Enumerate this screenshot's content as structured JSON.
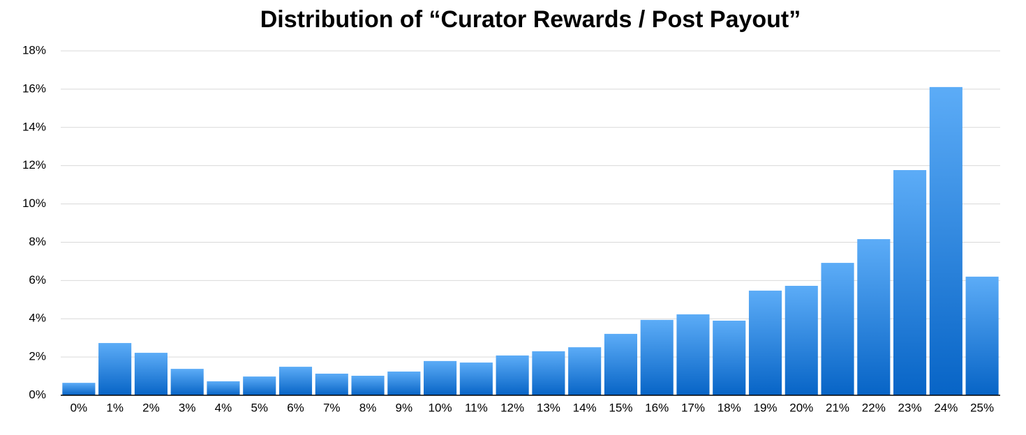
{
  "chart_data": {
    "type": "bar",
    "title": "Distribution of “Curator Rewards / Post Payout”",
    "categories": [
      "0%",
      "1%",
      "2%",
      "3%",
      "4%",
      "5%",
      "6%",
      "7%",
      "8%",
      "9%",
      "10%",
      "11%",
      "12%",
      "13%",
      "14%",
      "15%",
      "16%",
      "17%",
      "18%",
      "19%",
      "20%",
      "21%",
      "22%",
      "23%",
      "24%",
      "25%"
    ],
    "values": [
      0.65,
      2.73,
      2.22,
      1.38,
      0.73,
      0.98,
      1.49,
      1.13,
      1.02,
      1.24,
      1.79,
      1.71,
      2.08,
      2.3,
      2.51,
      3.21,
      3.94,
      4.23,
      3.9,
      5.47,
      5.72,
      6.92,
      8.16,
      11.77,
      16.11,
      6.2
    ],
    "gradient": [
      "#5cacf7",
      "#0764c6"
    ],
    "ylim": [
      0,
      18
    ],
    "yticks": [
      {
        "value": 0,
        "label": "0%"
      },
      {
        "value": 2,
        "label": "2%"
      },
      {
        "value": 4,
        "label": "4%"
      },
      {
        "value": 6,
        "label": "6%"
      },
      {
        "value": 8,
        "label": "8%"
      },
      {
        "value": 10,
        "label": "10%"
      },
      {
        "value": 12,
        "label": "12%"
      },
      {
        "value": 14,
        "label": "14%"
      },
      {
        "value": 16,
        "label": "16%"
      },
      {
        "value": 18,
        "label": "18%"
      }
    ],
    "grid": true
  }
}
